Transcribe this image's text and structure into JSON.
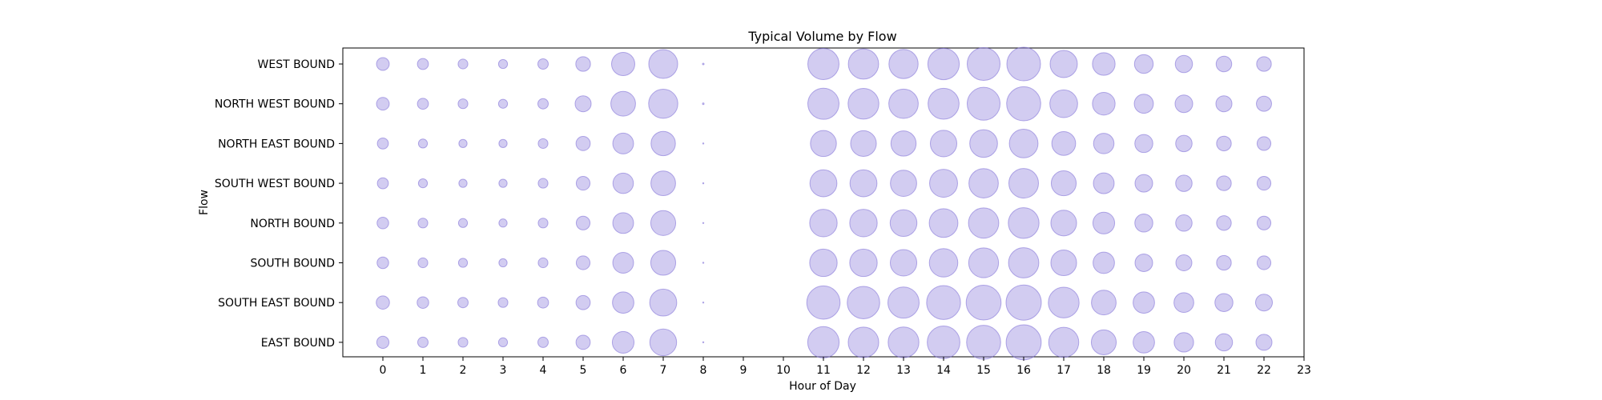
{
  "chart_data": {
    "type": "scatter",
    "title": "Typical Volume by Flow",
    "xlabel": "Hour of Day",
    "ylabel": "Flow",
    "x_ticks": [
      0,
      1,
      2,
      3,
      4,
      5,
      6,
      7,
      8,
      9,
      10,
      11,
      12,
      13,
      14,
      15,
      16,
      17,
      18,
      19,
      20,
      21,
      22,
      23
    ],
    "xlim": [
      -1,
      23
    ],
    "categories": [
      "WEST BOUND",
      "NORTH WEST BOUND",
      "NORTH EAST BOUND",
      "SOUTH WEST BOUND",
      "NORTH BOUND",
      "SOUTH BOUND",
      "SOUTH EAST BOUND",
      "EAST BOUND"
    ],
    "hours": [
      0,
      1,
      2,
      3,
      4,
      5,
      6,
      7,
      8,
      11,
      12,
      13,
      14,
      15,
      16,
      17,
      18,
      19,
      20,
      21,
      22
    ],
    "marker_color": "#9b8fe0",
    "marker_edge_color": "#7a6ad6",
    "grid": false,
    "size_unit": "relative volume",
    "series": [
      {
        "name": "WEST BOUND",
        "values": [
          12,
          9,
          7,
          6,
          8,
          16,
          40,
          62,
          0.2,
          72,
          68,
          63,
          73,
          80,
          84,
          55,
          38,
          26,
          22,
          18,
          16
        ]
      },
      {
        "name": "NORTH WEST BOUND",
        "values": [
          12,
          9,
          7,
          6,
          8,
          19,
          45,
          63,
          0.2,
          72,
          70,
          64,
          71,
          80,
          86,
          57,
          38,
          27,
          23,
          19,
          17
        ]
      },
      {
        "name": "NORTH EAST BOUND",
        "values": [
          9,
          6,
          5,
          5,
          7,
          15,
          32,
          44,
          0.1,
          50,
          49,
          47,
          52,
          57,
          61,
          42,
          31,
          24,
          20,
          16,
          14
        ]
      },
      {
        "name": "SOUTH WEST BOUND",
        "values": [
          9,
          6,
          5,
          5,
          7,
          14,
          31,
          45,
          0.1,
          54,
          54,
          51,
          58,
          64,
          65,
          46,
          32,
          23,
          20,
          16,
          14
        ]
      },
      {
        "name": "NORTH BOUND",
        "values": [
          10,
          7,
          6,
          5,
          7,
          14,
          32,
          46,
          0.1,
          56,
          56,
          53,
          61,
          68,
          70,
          49,
          35,
          24,
          20,
          16,
          14
        ]
      },
      {
        "name": "SOUTH BOUND",
        "values": [
          10,
          7,
          6,
          5,
          7,
          14,
          32,
          46,
          0.1,
          56,
          56,
          52,
          60,
          66,
          68,
          49,
          34,
          23,
          19,
          16,
          14
        ]
      },
      {
        "name": "SOUTH EAST BOUND",
        "values": [
          13,
          10,
          8,
          7,
          9,
          15,
          34,
          54,
          0.1,
          82,
          78,
          72,
          85,
          90,
          92,
          70,
          45,
          34,
          29,
          24,
          21
        ]
      },
      {
        "name": "EAST BOUND",
        "values": [
          11,
          8,
          7,
          6,
          8,
          15,
          35,
          53,
          0.1,
          73,
          69,
          70,
          79,
          86,
          91,
          67,
          46,
          34,
          28,
          22,
          19
        ]
      }
    ]
  }
}
